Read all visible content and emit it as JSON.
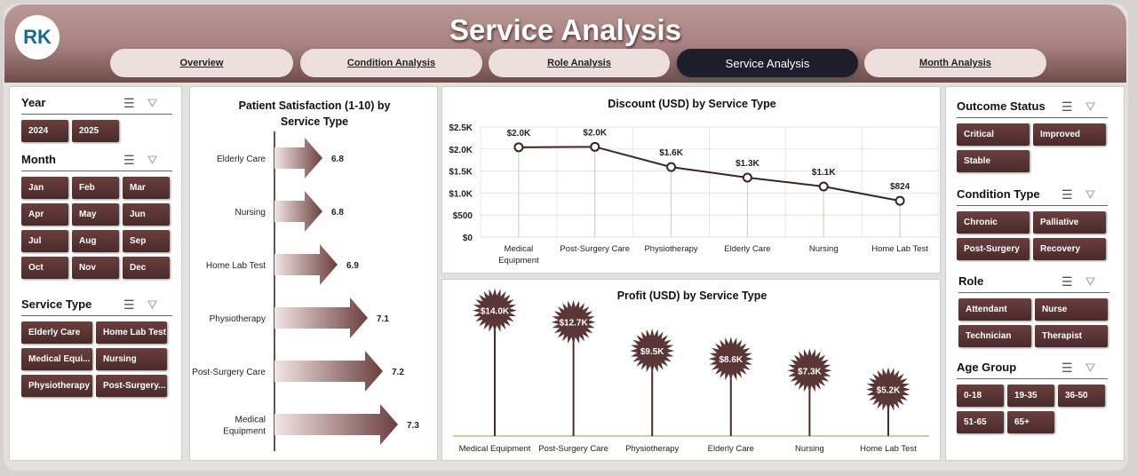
{
  "header": {
    "title": "Service Analysis",
    "logo_text": "RK"
  },
  "tabs": [
    {
      "label": "Overview",
      "active": false
    },
    {
      "label": "Condition Analysis",
      "active": false
    },
    {
      "label": "Role Analysis",
      "active": false
    },
    {
      "label": "Service Analysis",
      "active": true
    },
    {
      "label": "Month Analysis",
      "active": false
    }
  ],
  "slicers_left": [
    {
      "title": "Year",
      "items": [
        "2024",
        "2025"
      ]
    },
    {
      "title": "Month",
      "items": [
        "Jan",
        "Feb",
        "Mar",
        "Apr",
        "May",
        "Jun",
        "Jul",
        "Aug",
        "Sep",
        "Oct",
        "Nov",
        "Dec"
      ]
    },
    {
      "title": "Service Type",
      "items": [
        "Elderly Care",
        "Home Lab Test",
        "Medical Equi...",
        "Nursing",
        "Physiotherapy",
        "Post-Surgery..."
      ]
    }
  ],
  "slicers_right": [
    {
      "title": "Outcome Status",
      "items": [
        "Critical",
        "Improved",
        "Stable"
      ]
    },
    {
      "title": "Condition Type",
      "items": [
        "Chronic",
        "Palliative",
        "Post-Surgery",
        "Recovery"
      ]
    },
    {
      "title": "Role",
      "items": [
        "Attendant",
        "Nurse",
        "Technician",
        "Therapist"
      ]
    },
    {
      "title": "Age Group",
      "items": [
        "0-18",
        "19-35",
        "36-50",
        "51-65",
        "65+"
      ]
    }
  ],
  "colors": {
    "accent": "#5a3636",
    "active_tab": "#1f1d2c",
    "header": "#a98482"
  },
  "chart_data": [
    {
      "type": "bar",
      "orientation": "horizontal",
      "title": "Patient Satisfaction (1-10) by Service Type",
      "categories": [
        "Elderly Care",
        "Nursing",
        "Home Lab Test",
        "Physiotherapy",
        "Post-Surgery Care",
        "Medical Equipment"
      ],
      "values": [
        6.8,
        6.8,
        6.9,
        7.1,
        7.2,
        7.3
      ],
      "labels": [
        "6.8",
        "6.8",
        "6.9",
        "7.1",
        "7.2",
        "7.3"
      ]
    },
    {
      "type": "line",
      "title": "Discount (USD) by Service Type",
      "categories": [
        "Medical Equipment",
        "Post-Surgery Care",
        "Physiotherapy",
        "Elderly Care",
        "Nursing",
        "Home Lab Test"
      ],
      "values": [
        2040,
        2050,
        1590,
        1350,
        1150,
        824
      ],
      "labels": [
        "$2.0K",
        "$2.0K",
        "$1.6K",
        "$1.3K",
        "$1.1K",
        "$824"
      ],
      "yticks": [
        "$0",
        "$500",
        "$1.0K",
        "$1.5K",
        "$2.0K",
        "$2.5K"
      ],
      "ylim": [
        0,
        2500
      ],
      "grid": true
    },
    {
      "type": "bar",
      "style": "lollipop",
      "title": "Profit (USD) by Service Type",
      "categories": [
        "Medical Equipment",
        "Post-Surgery Care",
        "Physiotherapy",
        "Elderly Care",
        "Nursing",
        "Home Lab Test"
      ],
      "values": [
        14000,
        12700,
        9500,
        8600,
        7300,
        5200
      ],
      "labels": [
        "$14.0K",
        "$12.7K",
        "$9.5K",
        "$8.6K",
        "$7.3K",
        "$5.2K"
      ]
    }
  ]
}
